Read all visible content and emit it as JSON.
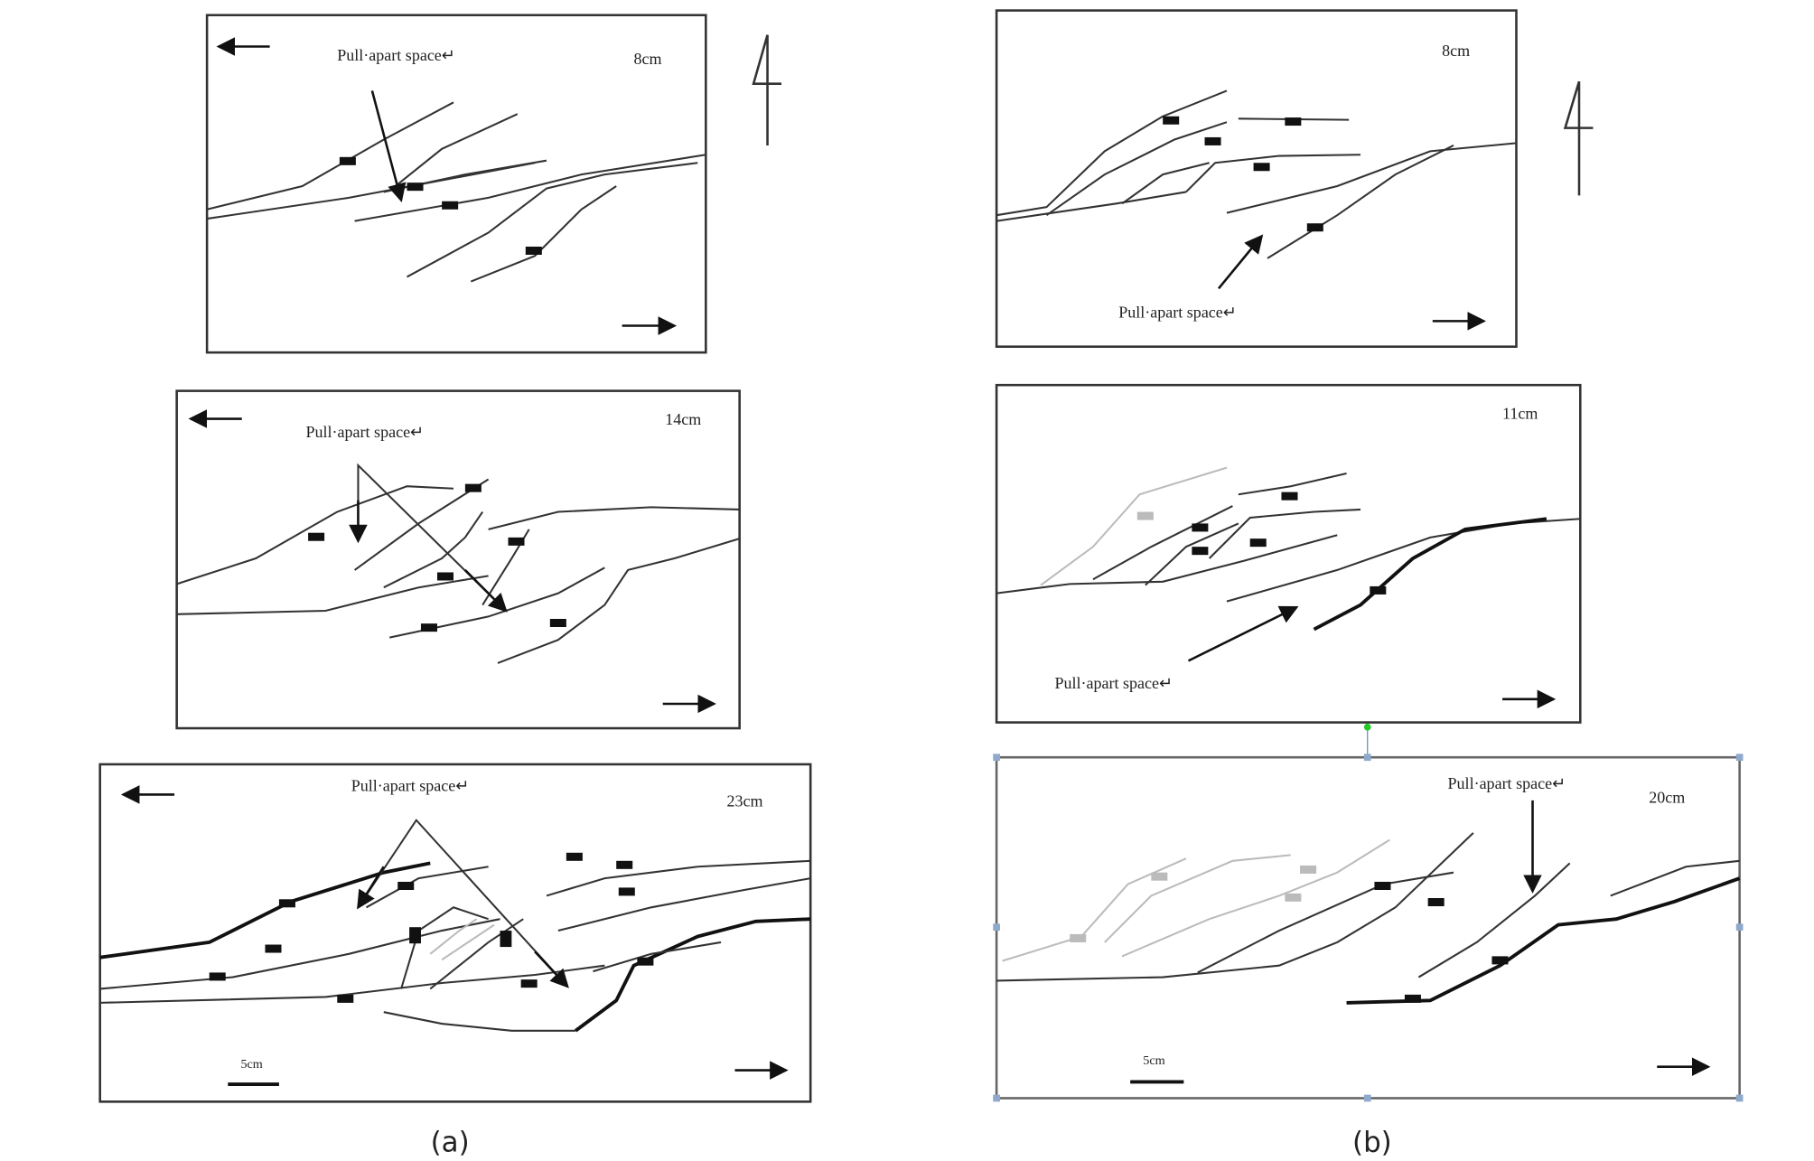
{
  "panels": [
    {
      "label": "(a)",
      "frames": [
        {
          "distance": "8cm",
          "annotation": "Pull·apart space↵"
        },
        {
          "distance": "14cm",
          "annotation": "Pull·apart space↵"
        },
        {
          "distance": "23cm",
          "annotation": "Pull·apart space↵",
          "scale": "5cm"
        }
      ]
    },
    {
      "label": "(b)",
      "frames": [
        {
          "distance": "8cm",
          "annotation": "Pull·apart space↵"
        },
        {
          "distance": "11cm",
          "annotation": "Pull·apart space↵"
        },
        {
          "distance": "20cm",
          "annotation": "Pull·apart space↵",
          "scale": "5cm"
        }
      ]
    }
  ]
}
